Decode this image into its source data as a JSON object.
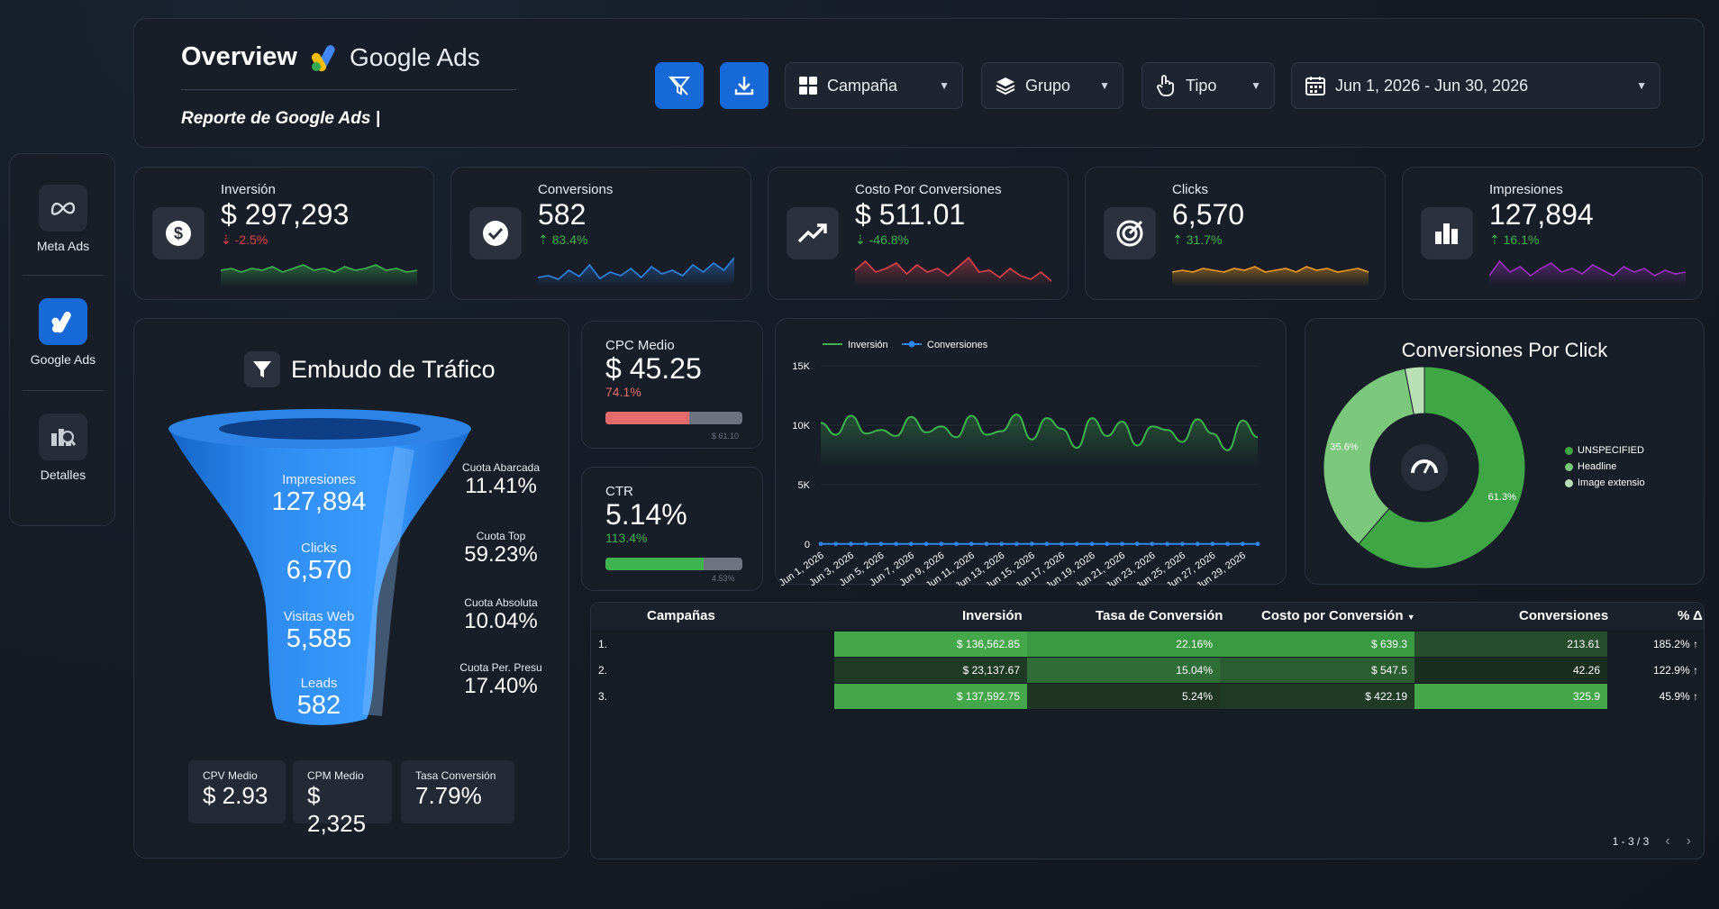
{
  "header": {
    "title": "Overview",
    "brand": "Google Ads",
    "subtitle": "Reporte de Google Ads |",
    "filters": {
      "campaign": "Campaña",
      "group": "Grupo",
      "type": "Tipo",
      "date_range": "Jun 1, 2026 - Jun 30, 2026"
    },
    "colors": {
      "accent": "#1769d8",
      "green": "#3fb34f",
      "red": "#e2414b"
    }
  },
  "sidebar": {
    "items": [
      {
        "label": "Meta Ads",
        "icon": "meta-icon"
      },
      {
        "label": "Google Ads",
        "icon": "google-ads-icon"
      },
      {
        "label": "Detalles",
        "icon": "details-icon"
      }
    ]
  },
  "kpis": [
    {
      "label": "Inversión",
      "value": "$ 297,293",
      "delta": "-2.5%",
      "direction": "down",
      "color": "#3fb34f",
      "icon": "dollar-icon"
    },
    {
      "label": "Conversions",
      "value": "582",
      "delta": "83.4%",
      "direction": "up",
      "color": "#2f86f0",
      "icon": "check-icon"
    },
    {
      "label": "Costo Por Conversiones",
      "value": "$ 511.01",
      "delta": "-46.8%",
      "direction": "down",
      "color": "#e2414b",
      "icon": "trending-up-icon"
    },
    {
      "label": "Clicks",
      "value": "6,570",
      "delta": "31.7%",
      "direction": "up",
      "color": "#f39a1e",
      "icon": "target-icon"
    },
    {
      "label": "Impresiones",
      "value": "127,894",
      "delta": "16.1%",
      "direction": "up",
      "color": "#9b2fc0",
      "icon": "bar-chart-icon"
    }
  ],
  "funnel": {
    "title": "Embudo de Tráfico",
    "stages": [
      {
        "label": "Impresiones",
        "value": "127,894"
      },
      {
        "label": "Clicks",
        "value": "6,570"
      },
      {
        "label": "Visitas Web",
        "value": "5,585"
      },
      {
        "label": "Leads",
        "value": "582"
      }
    ],
    "shares": [
      {
        "label": "Cuota Abarcada",
        "value": "11.41%"
      },
      {
        "label": "Cuota Top",
        "value": "59.23%"
      },
      {
        "label": "Cuota Absoluta",
        "value": "10.04%"
      },
      {
        "label": "Cuota Per. Presu",
        "value": "17.40%"
      }
    ],
    "minis": [
      {
        "label": "CPV Medio",
        "value": "$ 2.93"
      },
      {
        "label": "CPM Medio",
        "value": "$ 2,325"
      },
      {
        "label": "Tasa Conversión",
        "value": "7.79%"
      }
    ]
  },
  "cpc": {
    "label": "CPC Medio",
    "value": "$ 45.25",
    "delta": "74.1%",
    "bar_fraction": 0.61,
    "bar_label": "$ 61.10",
    "bar_color": "#e46b6b",
    "delta_color": "#e46b6b"
  },
  "ctr": {
    "label": "CTR",
    "value": "5.14%",
    "delta": "113.4%",
    "bar_fraction": 0.72,
    "bar_label": "4.53%",
    "bar_color": "#3fb34f",
    "delta_color": "#3fb34f"
  },
  "chart_data": [
    {
      "type": "line",
      "x": [
        "Jun 1, 2026",
        "Jun 2, 2026",
        "Jun 3, 2026",
        "Jun 4, 2026",
        "Jun 5, 2026",
        "Jun 6, 2026",
        "Jun 7, 2026",
        "Jun 8, 2026",
        "Jun 9, 2026",
        "Jun 10, 2026",
        "Jun 11, 2026",
        "Jun 12, 2026",
        "Jun 13, 2026",
        "Jun 14, 2026",
        "Jun 15, 2026",
        "Jun 16, 2026",
        "Jun 17, 2026",
        "Jun 18, 2026",
        "Jun 19, 2026",
        "Jun 20, 2026",
        "Jun 21, 2026",
        "Jun 22, 2026",
        "Jun 23, 2026",
        "Jun 24, 2026",
        "Jun 25, 2026",
        "Jun 26, 2026",
        "Jun 27, 2026",
        "Jun 28, 2026",
        "Jun 29, 2026",
        "Jun 30, 2026"
      ],
      "xticks": [
        "Jun 1, 2026",
        "Jun 3, 2026",
        "Jun 5, 2026",
        "Jun 7, 2026",
        "Jun 9, 2026",
        "Jun 11, 2026",
        "Jun 13, 2026",
        "Jun 15, 2026",
        "Jun 17, 2026",
        "Jun 19, 2026",
        "Jun 21, 2026",
        "Jun 23, 2026",
        "Jun 25, 2026",
        "Jun 27, 2026",
        "Jun 29, 2026"
      ],
      "yticks": [
        "15K",
        "10K",
        "5K",
        "0"
      ],
      "ylim": [
        0,
        15000
      ],
      "series": [
        {
          "name": "Inversión",
          "color": "#3fb34f",
          "values": [
            10200,
            9200,
            10800,
            9300,
            9600,
            9100,
            10700,
            9400,
            9900,
            9000,
            10800,
            9200,
            9500,
            10900,
            8800,
            10600,
            9700,
            8100,
            10600,
            9100,
            10300,
            8300,
            9900,
            9600,
            8600,
            10500,
            9300,
            7900,
            10400,
            9000
          ]
        },
        {
          "name": "Conversiones",
          "color": "#2f86f0",
          "values": [
            20,
            18,
            22,
            19,
            21,
            17,
            20,
            19,
            22,
            18,
            20,
            21,
            19,
            18,
            22,
            20,
            19,
            21,
            18,
            20,
            19,
            22,
            20,
            18,
            21,
            19,
            20,
            18,
            21,
            19
          ]
        }
      ]
    },
    {
      "type": "pie",
      "title": "Conversiones Por Click",
      "labels": [
        "UNSPECIFIED",
        "Headline",
        "Image extensio"
      ],
      "values": [
        61.3,
        35.6,
        3.1
      ],
      "slice_labels": [
        "61.3%",
        "35.6%",
        ""
      ],
      "colors": [
        "#3fa646",
        "#7bc77b",
        "#b8e0b4"
      ]
    }
  ],
  "table": {
    "headers": [
      "Campañas",
      "Inversión",
      "Tasa de Conversión",
      "Costo por Conversión",
      "Conversiones",
      "% Δ"
    ],
    "rows": [
      {
        "idx": "1.",
        "inv": "$ 136,562.85",
        "rate": "22.16%",
        "cost": "$ 639.3",
        "conv": "213.61",
        "pct": "185.2% ↑"
      },
      {
        "idx": "2.",
        "inv": "$ 23,137.67",
        "rate": "15.04%",
        "cost": "$ 547.5",
        "conv": "42.26",
        "pct": "122.9% ↑"
      },
      {
        "idx": "3.",
        "inv": "$ 137,592.75",
        "rate": "5.24%",
        "cost": "$ 422.19",
        "conv": "325.9",
        "pct": "45.9% ↑"
      }
    ],
    "cell_shades": [
      [
        "#44a84b",
        "#3a9a42",
        "#3a9a42",
        "#264d2c"
      ],
      [
        "#1f3b25",
        "#2f6e36",
        "#2a5e30",
        "#1a2e1f"
      ],
      [
        "#44a84b",
        "#1d3522",
        "#1f3b25",
        "#44a84b"
      ]
    ],
    "pager": "1 - 3 / 3"
  }
}
